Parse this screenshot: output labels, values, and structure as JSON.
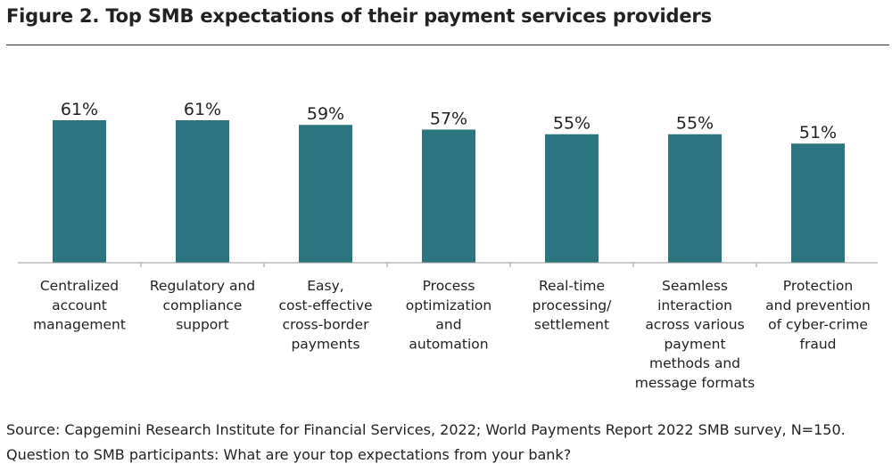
{
  "title": "Figure 2. Top SMB expectations of their payment services providers",
  "chart_data": {
    "type": "bar",
    "categories": [
      [
        "Centralized",
        "account",
        "management"
      ],
      [
        "Regulatory and",
        "compliance",
        "support"
      ],
      [
        "Easy,",
        "cost-effective",
        "cross-border",
        "payments"
      ],
      [
        "Process",
        "optimization",
        "and",
        "automation"
      ],
      [
        "Real-time",
        "processing/",
        "settlement"
      ],
      [
        "Seamless",
        "interaction",
        "across various",
        "payment",
        "methods and",
        "message formats"
      ],
      [
        "Protection",
        "and prevention",
        "of cyber-crime",
        "fraud"
      ]
    ],
    "values": [
      61,
      61,
      59,
      57,
      55,
      55,
      51
    ],
    "data_labels": [
      "61%",
      "61%",
      "59%",
      "57%",
      "55%",
      "55%",
      "51%"
    ],
    "value_unit": "%",
    "bar_color": "#2a7580",
    "grid": false,
    "legend": "none"
  },
  "footnotes": {
    "source": "Source: Capgemini Research Institute for Financial Services, 2022; World Payments Report 2022 SMB survey, N=150.",
    "question": "Question to SMB participants: What are your top expectations from your bank?"
  }
}
